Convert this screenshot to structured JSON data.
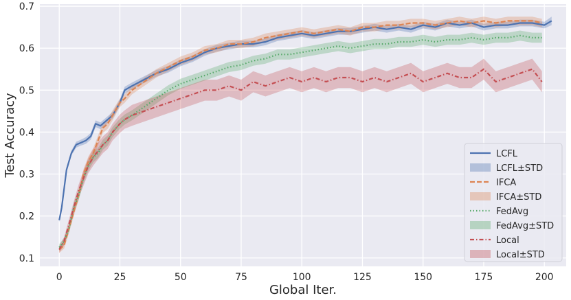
{
  "chart_data": {
    "type": "line",
    "xlabel": "Global Iter.",
    "ylabel": "Test Accuracy",
    "xlim": [
      -8,
      209
    ],
    "ylim": [
      0.08,
      0.705
    ],
    "xticks": [
      0,
      25,
      50,
      75,
      100,
      125,
      150,
      175,
      200
    ],
    "yticks": [
      0.1,
      0.2,
      0.3,
      0.4,
      0.5,
      0.6,
      0.7
    ],
    "grid": true,
    "legend_position": "bottom-right",
    "series": [
      {
        "name": "LCFL",
        "band_name": "LCFL±STD",
        "color": "#4c72b0",
        "style": "solid",
        "x": [
          0,
          1,
          3,
          5,
          7,
          9,
          11,
          13,
          15,
          17,
          20,
          22,
          25,
          27,
          30,
          35,
          40,
          45,
          50,
          55,
          60,
          65,
          70,
          75,
          80,
          85,
          90,
          95,
          100,
          105,
          110,
          115,
          120,
          125,
          130,
          135,
          140,
          145,
          150,
          155,
          160,
          165,
          170,
          175,
          180,
          185,
          190,
          195,
          200,
          203
        ],
        "y": [
          0.19,
          0.22,
          0.31,
          0.35,
          0.37,
          0.375,
          0.38,
          0.39,
          0.42,
          0.415,
          0.43,
          0.44,
          0.47,
          0.5,
          0.51,
          0.525,
          0.54,
          0.55,
          0.565,
          0.575,
          0.59,
          0.6,
          0.605,
          0.61,
          0.61,
          0.615,
          0.625,
          0.63,
          0.635,
          0.63,
          0.635,
          0.64,
          0.64,
          0.645,
          0.65,
          0.645,
          0.65,
          0.645,
          0.655,
          0.65,
          0.66,
          0.655,
          0.66,
          0.65,
          0.655,
          0.655,
          0.66,
          0.66,
          0.655,
          0.665
        ],
        "std": [
          0.005,
          0.005,
          0.006,
          0.006,
          0.007,
          0.007,
          0.008,
          0.008,
          0.008,
          0.008,
          0.008,
          0.008,
          0.008,
          0.008,
          0.008,
          0.008,
          0.008,
          0.008,
          0.008,
          0.008,
          0.008,
          0.008,
          0.008,
          0.008,
          0.008,
          0.008,
          0.008,
          0.008,
          0.008,
          0.008,
          0.008,
          0.008,
          0.008,
          0.008,
          0.008,
          0.008,
          0.008,
          0.008,
          0.008,
          0.008,
          0.008,
          0.008,
          0.008,
          0.008,
          0.008,
          0.008,
          0.008,
          0.008,
          0.008,
          0.01
        ]
      },
      {
        "name": "IFCA",
        "band_name": "IFCA±STD",
        "color": "#dd8452",
        "style": "dashed",
        "x": [
          0,
          2,
          4,
          6,
          8,
          10,
          12,
          14,
          16,
          18,
          20,
          22,
          25,
          27,
          30,
          35,
          40,
          45,
          50,
          55,
          60,
          65,
          70,
          75,
          80,
          85,
          90,
          95,
          100,
          105,
          110,
          115,
          120,
          125,
          130,
          135,
          140,
          145,
          150,
          155,
          160,
          165,
          170,
          175,
          180,
          185,
          190,
          195,
          199
        ],
        "y": [
          0.12,
          0.13,
          0.17,
          0.21,
          0.25,
          0.3,
          0.33,
          0.35,
          0.38,
          0.41,
          0.42,
          0.44,
          0.47,
          0.48,
          0.5,
          0.52,
          0.54,
          0.555,
          0.57,
          0.58,
          0.595,
          0.6,
          0.61,
          0.61,
          0.615,
          0.625,
          0.63,
          0.635,
          0.64,
          0.635,
          0.64,
          0.645,
          0.64,
          0.65,
          0.65,
          0.655,
          0.655,
          0.66,
          0.66,
          0.655,
          0.66,
          0.665,
          0.66,
          0.665,
          0.66,
          0.665,
          0.665,
          0.665,
          0.66
        ],
        "std": [
          0.008,
          0.008,
          0.01,
          0.01,
          0.012,
          0.012,
          0.012,
          0.012,
          0.012,
          0.012,
          0.012,
          0.012,
          0.01,
          0.01,
          0.01,
          0.01,
          0.01,
          0.01,
          0.01,
          0.01,
          0.01,
          0.01,
          0.01,
          0.01,
          0.01,
          0.01,
          0.01,
          0.01,
          0.01,
          0.01,
          0.01,
          0.01,
          0.01,
          0.01,
          0.01,
          0.01,
          0.01,
          0.01,
          0.01,
          0.01,
          0.01,
          0.01,
          0.01,
          0.01,
          0.01,
          0.01,
          0.01,
          0.01,
          0.01
        ]
      },
      {
        "name": "FedAvg",
        "band_name": "FedAvg±STD",
        "color": "#55a868",
        "style": "dotted",
        "x": [
          0,
          2,
          4,
          6,
          8,
          10,
          12,
          14,
          16,
          18,
          20,
          22,
          25,
          27,
          30,
          35,
          40,
          45,
          50,
          55,
          60,
          65,
          70,
          75,
          80,
          85,
          90,
          95,
          100,
          105,
          110,
          115,
          120,
          125,
          130,
          135,
          140,
          145,
          150,
          155,
          160,
          165,
          170,
          175,
          180,
          185,
          190,
          195,
          199
        ],
        "y": [
          0.125,
          0.14,
          0.17,
          0.22,
          0.25,
          0.29,
          0.32,
          0.34,
          0.35,
          0.37,
          0.38,
          0.4,
          0.42,
          0.43,
          0.44,
          0.46,
          0.48,
          0.5,
          0.515,
          0.525,
          0.535,
          0.545,
          0.555,
          0.56,
          0.57,
          0.575,
          0.585,
          0.585,
          0.59,
          0.595,
          0.6,
          0.605,
          0.6,
          0.605,
          0.61,
          0.61,
          0.615,
          0.615,
          0.62,
          0.615,
          0.62,
          0.62,
          0.625,
          0.62,
          0.625,
          0.625,
          0.63,
          0.625,
          0.625
        ],
        "std": [
          0.008,
          0.008,
          0.01,
          0.012,
          0.012,
          0.012,
          0.012,
          0.012,
          0.012,
          0.012,
          0.012,
          0.012,
          0.012,
          0.012,
          0.012,
          0.012,
          0.012,
          0.012,
          0.012,
          0.012,
          0.012,
          0.012,
          0.012,
          0.012,
          0.012,
          0.012,
          0.012,
          0.012,
          0.012,
          0.012,
          0.012,
          0.012,
          0.012,
          0.012,
          0.012,
          0.012,
          0.012,
          0.012,
          0.012,
          0.012,
          0.012,
          0.012,
          0.012,
          0.012,
          0.012,
          0.012,
          0.012,
          0.012,
          0.012
        ]
      },
      {
        "name": "Local",
        "band_name": "Local±STD",
        "color": "#c44e52",
        "style": "dashdot",
        "x": [
          0,
          2,
          4,
          6,
          8,
          10,
          12,
          14,
          16,
          18,
          20,
          22,
          25,
          27,
          30,
          35,
          40,
          45,
          50,
          55,
          60,
          65,
          70,
          75,
          80,
          85,
          90,
          95,
          100,
          105,
          110,
          115,
          120,
          125,
          130,
          135,
          140,
          145,
          150,
          155,
          160,
          165,
          170,
          175,
          180,
          185,
          190,
          195,
          199
        ],
        "y": [
          0.12,
          0.14,
          0.18,
          0.22,
          0.26,
          0.29,
          0.32,
          0.34,
          0.355,
          0.37,
          0.38,
          0.4,
          0.42,
          0.43,
          0.44,
          0.45,
          0.46,
          0.47,
          0.48,
          0.49,
          0.5,
          0.5,
          0.51,
          0.5,
          0.52,
          0.51,
          0.52,
          0.53,
          0.52,
          0.53,
          0.52,
          0.53,
          0.53,
          0.52,
          0.53,
          0.52,
          0.53,
          0.54,
          0.52,
          0.53,
          0.54,
          0.53,
          0.53,
          0.55,
          0.52,
          0.53,
          0.54,
          0.55,
          0.52
        ],
        "std": [
          0.008,
          0.01,
          0.012,
          0.015,
          0.015,
          0.018,
          0.018,
          0.02,
          0.02,
          0.02,
          0.02,
          0.02,
          0.022,
          0.022,
          0.025,
          0.025,
          0.025,
          0.025,
          0.025,
          0.025,
          0.025,
          0.025,
          0.025,
          0.025,
          0.025,
          0.025,
          0.025,
          0.025,
          0.025,
          0.025,
          0.025,
          0.025,
          0.025,
          0.025,
          0.025,
          0.025,
          0.025,
          0.025,
          0.025,
          0.025,
          0.025,
          0.025,
          0.025,
          0.025,
          0.025,
          0.025,
          0.025,
          0.025,
          0.025
        ]
      }
    ]
  }
}
